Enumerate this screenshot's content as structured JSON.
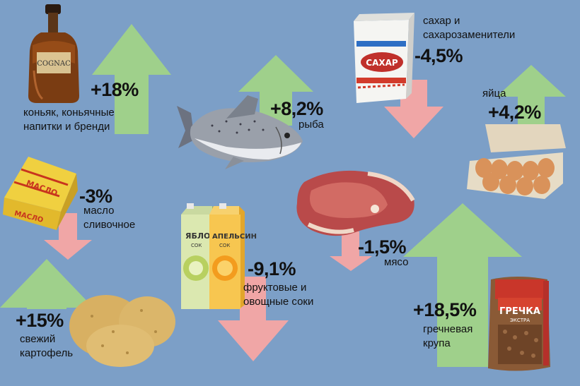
{
  "colors": {
    "background": "#7c9fc7",
    "up_arrow": "#9fd08b",
    "down_arrow": "#f0a6a6"
  },
  "items": [
    {
      "id": "cognac",
      "change": "+18%",
      "direction": "up",
      "label": [
        "коньяк, коньячные",
        "напитки и бренди"
      ],
      "icon": "cognac-bottle-icon",
      "bottle_text": "COGNAC"
    },
    {
      "id": "fish",
      "change": "+8,2%",
      "direction": "up",
      "label": [
        "рыба"
      ],
      "icon": "fish-icon"
    },
    {
      "id": "sugar",
      "change": "-4,5%",
      "direction": "down",
      "label": [
        "сахар и",
        "сахарозаменители"
      ],
      "icon": "sugar-pack-icon",
      "pack_text": "САХАР"
    },
    {
      "id": "eggs",
      "change": "+4,2%",
      "direction": "up",
      "label": [
        "яйца"
      ],
      "icon": "egg-carton-icon"
    },
    {
      "id": "butter",
      "change": "-3%",
      "direction": "down",
      "label": [
        "масло",
        "сливочное"
      ],
      "icon": "butter-pack-icon",
      "pack_text": "МАСЛО"
    },
    {
      "id": "meat",
      "change": "-1,5%",
      "direction": "down",
      "label": [
        "мясо"
      ],
      "icon": "meat-icon"
    },
    {
      "id": "juice",
      "change": "-9,1%",
      "direction": "down",
      "label": [
        "фруктовые и",
        "овощные соки"
      ],
      "icon": "juice-cartons-icon",
      "pack_text": [
        "ЯБЛОКО",
        "АПЕЛЬСИН"
      ],
      "pack_subtext": "СОК"
    },
    {
      "id": "potato",
      "change": "+15%",
      "direction": "up",
      "label": [
        "свежий",
        "картофель"
      ],
      "icon": "potato-icon"
    },
    {
      "id": "buckwheat",
      "change": "+18,5%",
      "direction": "up",
      "label": [
        "гречневая",
        "крупа"
      ],
      "icon": "buckwheat-bag-icon",
      "pack_text": "ГРЕЧКА",
      "pack_subtext": "ЭКСТРА"
    }
  ]
}
